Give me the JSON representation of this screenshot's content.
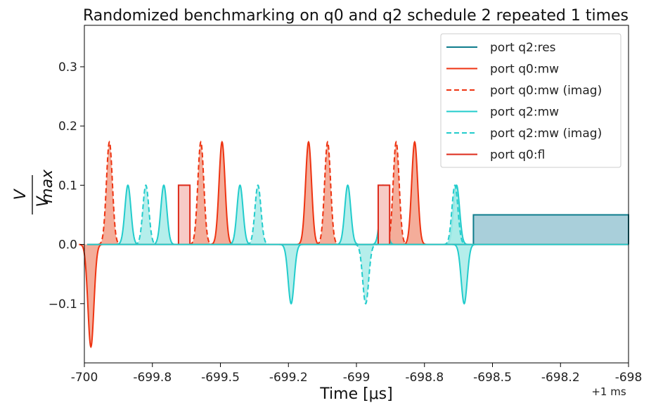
{
  "chart_data": {
    "type": "line",
    "title": "Randomized benchmarking on q0 and q2 schedule 2 repeated 1 times",
    "xlabel": "Time [μs]",
    "ylabel": "V / V_max",
    "ylabel_numerator": "V",
    "ylabel_denominator": "V",
    "ylabel_denominator_sub": "max",
    "x_offset_label": "+1 ms",
    "xlim": [
      -700,
      -698
    ],
    "ylim": [
      -0.2,
      0.37
    ],
    "x_ticks": [
      -700,
      -699.75,
      -699.5,
      -699.25,
      -699,
      -698.75,
      -698.5,
      -698.25,
      -698
    ],
    "x_tick_labels": [
      "-700",
      "-699.8",
      "-699.5",
      "-699.2",
      "-699",
      "-698.8",
      "-698.5",
      "-698.2",
      "-698"
    ],
    "y_ticks": [
      -0.1,
      0.0,
      0.1,
      0.2,
      0.3
    ],
    "y_tick_labels": [
      "−0.1",
      "0.0",
      "0.1",
      "0.2",
      "0.3"
    ],
    "grid": false,
    "legend_position": "top-right",
    "legend": [
      {
        "label": "port q2:res",
        "color": "#0e7c8c",
        "dash": "solid"
      },
      {
        "label": "port q0:mw",
        "color": "#ee3311",
        "dash": "solid"
      },
      {
        "label": "port q0:mw (imag)",
        "color": "#ee3311",
        "dash": "dashed"
      },
      {
        "label": "port q2:mw",
        "color": "#22cccc",
        "dash": "solid"
      },
      {
        "label": "port q2:mw (imag)",
        "color": "#22cccc",
        "dash": "dashed"
      },
      {
        "label": "port q0:fl",
        "color": "#dd2a1a",
        "dash": "solid"
      }
    ],
    "pulse_sigma_us": 0.011,
    "series": [
      {
        "name": "port q2:res",
        "kind": "square",
        "color": "#0e7c8c",
        "fill": "#a9cfda",
        "pulses": [
          {
            "start": -698.57,
            "end": -698,
            "amp": 0.05
          }
        ]
      },
      {
        "name": "port q0:mw",
        "kind": "gaussian",
        "color": "#ee3311",
        "fill": "#f29f88",
        "dash": "solid",
        "pulses": [
          {
            "center": -699.976,
            "amp": -0.173
          },
          {
            "center": -699.494,
            "amp": 0.173
          },
          {
            "center": -699.176,
            "amp": 0.173
          },
          {
            "center": -698.786,
            "amp": 0.173
          }
        ]
      },
      {
        "name": "port q0:mw (imag)",
        "kind": "gaussian",
        "color": "#ee3311",
        "fill": "#f29f88",
        "dash": "dashed",
        "pulses": [
          {
            "center": -699.908,
            "amp": 0.173
          },
          {
            "center": -699.572,
            "amp": 0.173
          },
          {
            "center": -699.106,
            "amp": 0.173
          },
          {
            "center": -698.854,
            "amp": 0.173
          }
        ]
      },
      {
        "name": "port q2:mw",
        "kind": "gaussian",
        "color": "#22cccc",
        "fill": "#a8ebe8",
        "dash": "solid",
        "pulses": [
          {
            "center": -699.84,
            "amp": 0.1
          },
          {
            "center": -699.708,
            "amp": 0.1
          },
          {
            "center": -699.428,
            "amp": 0.1
          },
          {
            "center": -699.24,
            "amp": -0.1
          },
          {
            "center": -699.032,
            "amp": 0.1
          },
          {
            "center": -698.902,
            "amp": 0.1
          },
          {
            "center": -698.632,
            "amp": 0.1
          },
          {
            "center": -698.604,
            "amp": -0.1
          }
        ]
      },
      {
        "name": "port q2:mw (imag)",
        "kind": "gaussian",
        "color": "#22cccc",
        "fill": "#a8ebe8",
        "dash": "dashed",
        "pulses": [
          {
            "center": -699.774,
            "amp": 0.1
          },
          {
            "center": -699.362,
            "amp": 0.1
          },
          {
            "center": -698.966,
            "amp": -0.1
          },
          {
            "center": -698.638,
            "amp": 0.1
          }
        ]
      },
      {
        "name": "port q0:fl",
        "kind": "square",
        "color": "#dd2a1a",
        "fill": "#f7cbc6",
        "pulses": [
          {
            "start": -699.654,
            "end": -699.612,
            "amp": 0.1
          },
          {
            "start": -698.92,
            "end": -698.878,
            "amp": 0.1
          }
        ]
      }
    ]
  }
}
